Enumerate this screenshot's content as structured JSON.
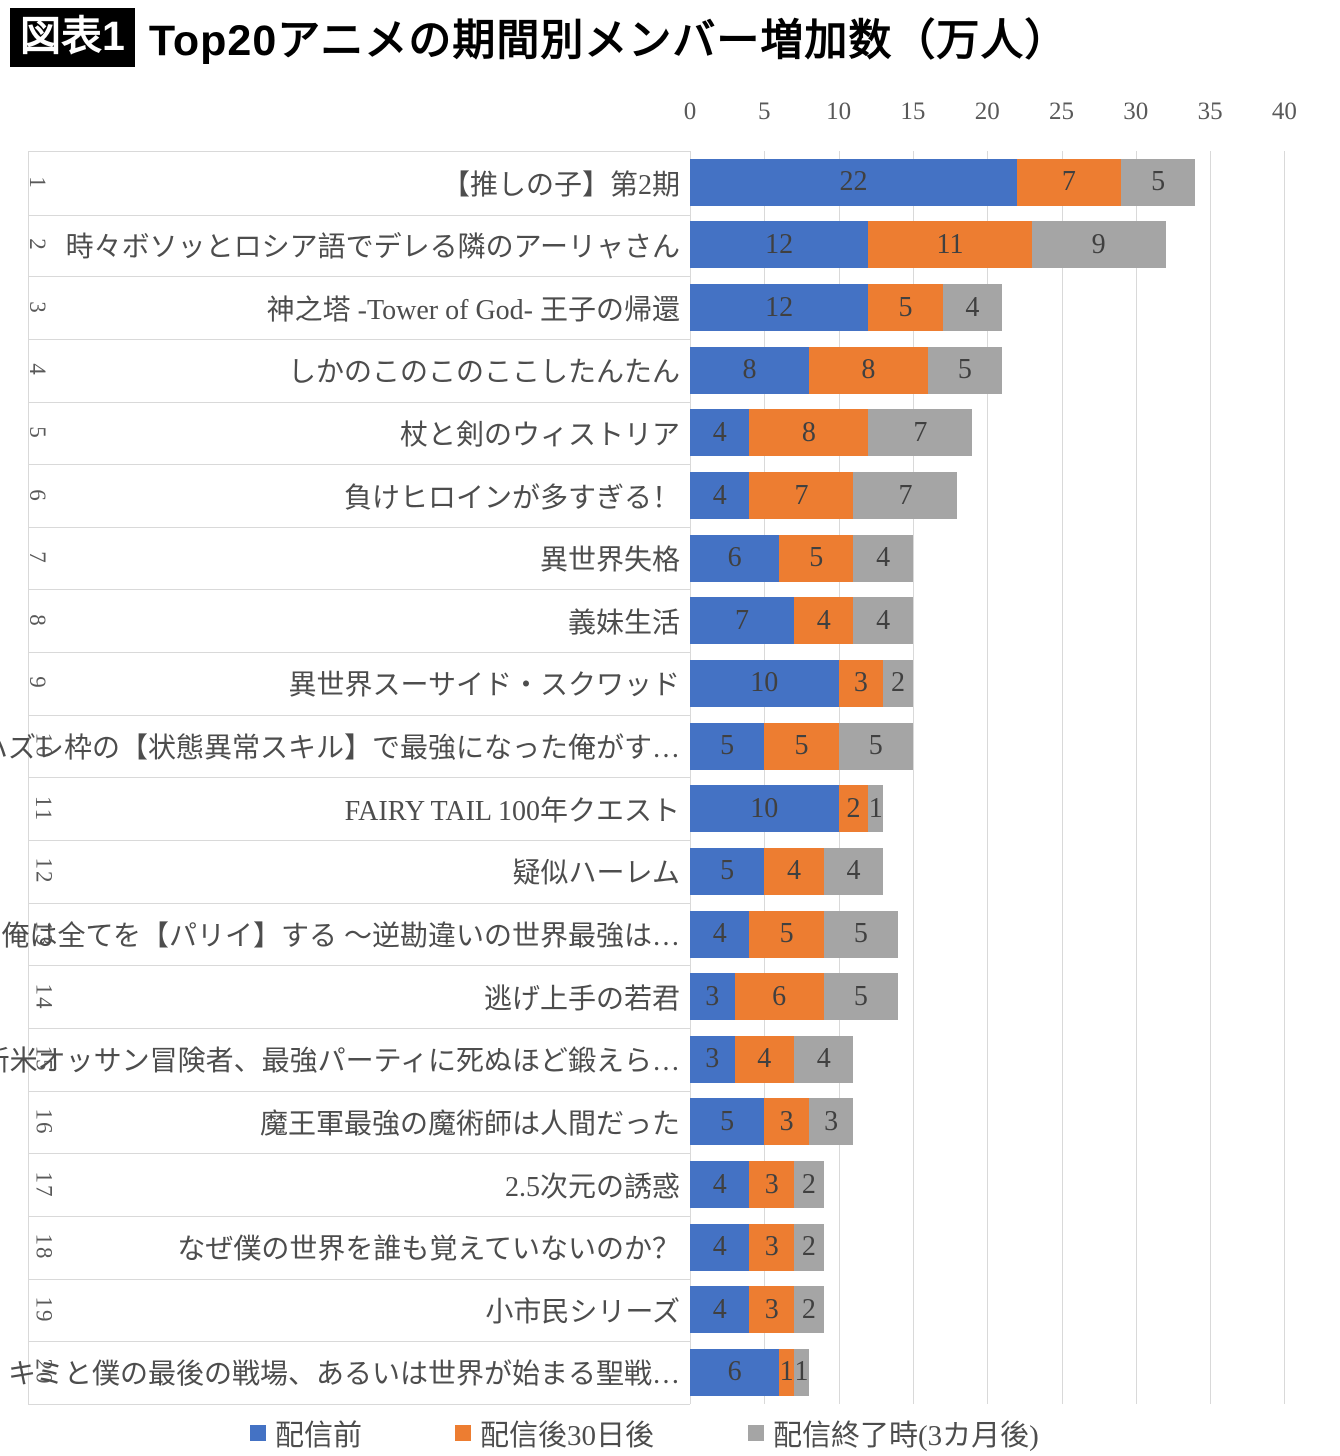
{
  "header": {
    "figure_label": "図表1",
    "title": "Top20アニメの期間別メンバー増加数（万人）"
  },
  "chart_data": {
    "type": "bar",
    "orientation": "horizontal",
    "stacked": true,
    "unit": "万人",
    "x_axis": {
      "position": "top",
      "min": 0,
      "max": 40,
      "tick_interval": 5,
      "ticks": [
        0,
        5,
        10,
        15,
        20,
        25,
        30,
        35,
        40
      ],
      "gridlines": true
    },
    "legend_position": "bottom",
    "series": [
      {
        "name": "配信前",
        "color": "#4472C4"
      },
      {
        "name": "配信後30日後",
        "color": "#ED7D31"
      },
      {
        "name": "配信終了時(3カ月後)",
        "color": "#A5A5A5"
      }
    ],
    "rows": [
      {
        "rank": "1",
        "label": "【推しの子】第2期",
        "values": [
          22,
          7,
          5
        ]
      },
      {
        "rank": "2",
        "label": "時々ボソッとロシア語でデレる隣のアーリャさん",
        "values": [
          12,
          11,
          9
        ]
      },
      {
        "rank": "3",
        "label": "神之塔 -Tower of God- 王子の帰還",
        "values": [
          12,
          5,
          4
        ]
      },
      {
        "rank": "4",
        "label": "しかのこのこのここしたんたん",
        "values": [
          8,
          8,
          5
        ]
      },
      {
        "rank": "5",
        "label": "杖と剣のウィストリア",
        "values": [
          4,
          8,
          7
        ]
      },
      {
        "rank": "6",
        "label": "負けヒロインが多すぎる！",
        "values": [
          4,
          7,
          7
        ]
      },
      {
        "rank": "7",
        "label": "異世界失格",
        "values": [
          6,
          5,
          4
        ]
      },
      {
        "rank": "8",
        "label": "義妹生活",
        "values": [
          7,
          4,
          4
        ]
      },
      {
        "rank": "9",
        "label": "異世界スーサイド・スクワッド",
        "values": [
          10,
          3,
          2
        ]
      },
      {
        "rank": "10",
        "label": "ハズレ枠の【状態異常スキル】で最強になった俺がす…",
        "values": [
          5,
          5,
          5
        ]
      },
      {
        "rank": "11",
        "label": "FAIRY TAIL 100年クエスト",
        "values": [
          10,
          2,
          1
        ]
      },
      {
        "rank": "12",
        "label": "疑似ハーレム",
        "values": [
          5,
          4,
          4
        ]
      },
      {
        "rank": "13",
        "label": "俺は全てを【パリイ】する ～逆勘違いの世界最強は…",
        "values": [
          4,
          5,
          5
        ]
      },
      {
        "rank": "14",
        "label": "逃げ上手の若君",
        "values": [
          3,
          6,
          5
        ]
      },
      {
        "rank": "15",
        "label": "新米オッサン冒険者、最強パーティに死ぬほど鍛えら…",
        "values": [
          3,
          4,
          4
        ]
      },
      {
        "rank": "16",
        "label": "魔王軍最強の魔術師は人間だった",
        "values": [
          5,
          3,
          3
        ]
      },
      {
        "rank": "17",
        "label": "2.5次元の誘惑",
        "values": [
          4,
          3,
          2
        ]
      },
      {
        "rank": "18",
        "label": "なぜ僕の世界を誰も覚えていないのか？",
        "values": [
          4,
          3,
          2
        ]
      },
      {
        "rank": "19",
        "label": "小市民シリーズ",
        "values": [
          4,
          3,
          2
        ]
      },
      {
        "rank": "20",
        "label": "キミと僕の最後の戦場、あるいは世界が始まる聖戦…",
        "values": [
          6,
          1,
          1
        ]
      }
    ]
  }
}
